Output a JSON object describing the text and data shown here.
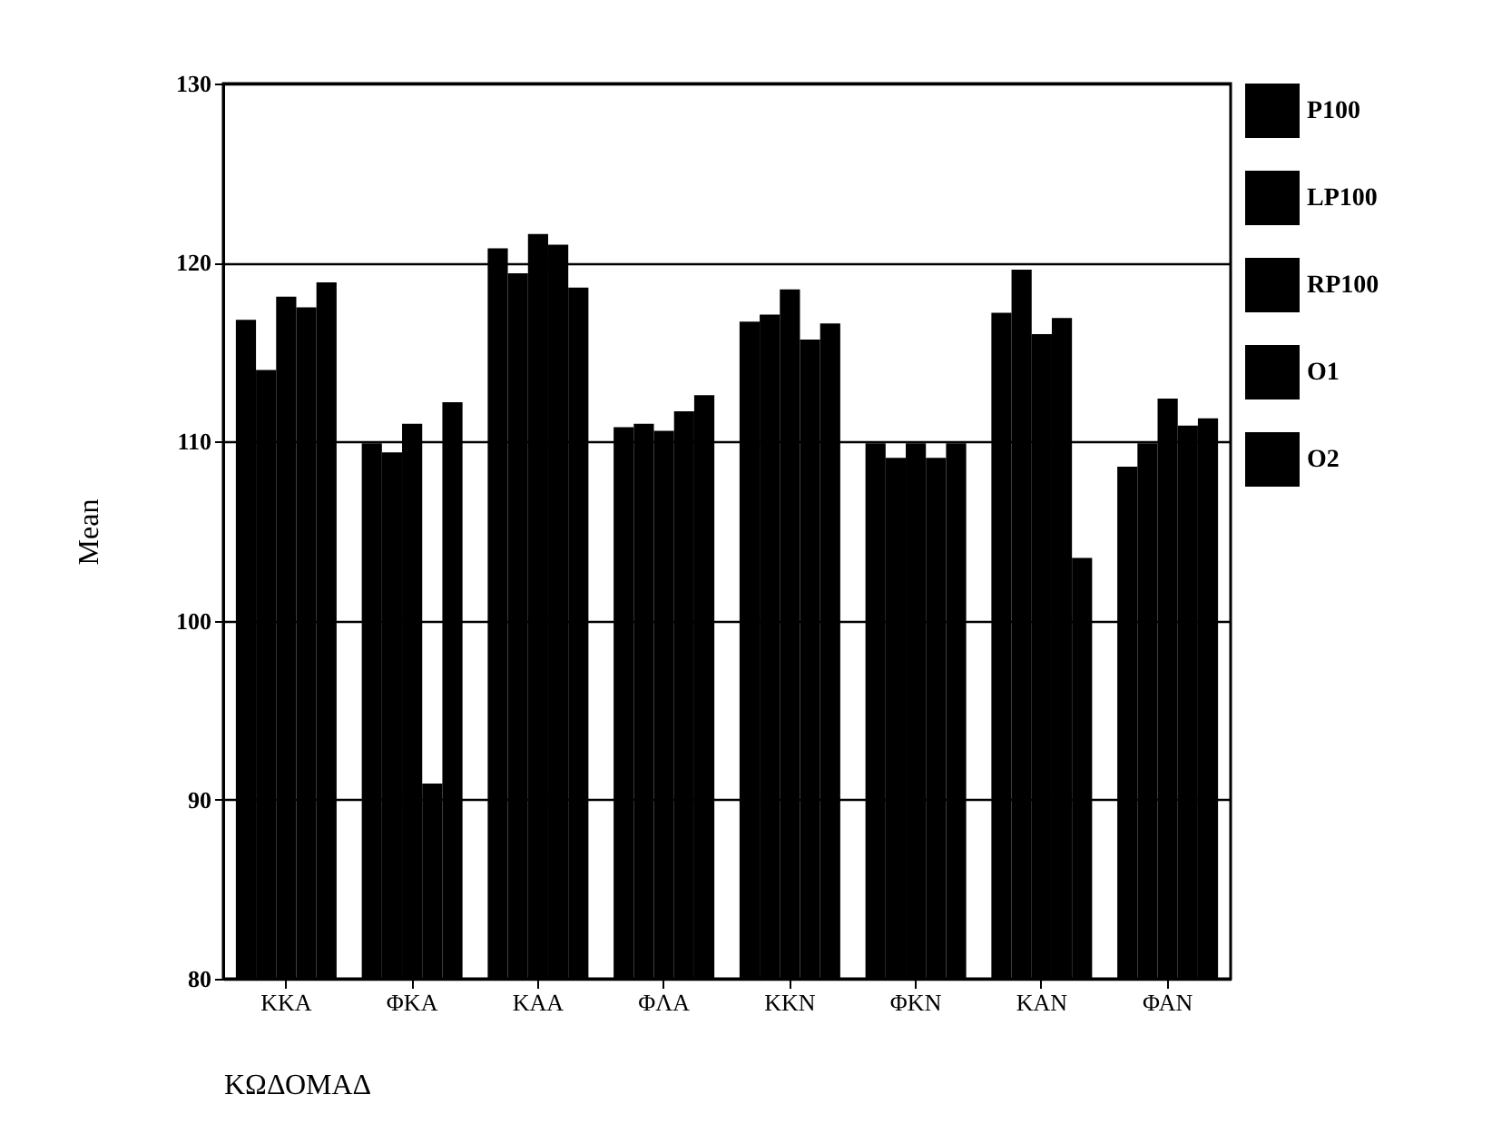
{
  "chart_data": {
    "type": "bar",
    "xlabel": "ΚΩΔΟΜΑΔ",
    "ylabel": "Mean",
    "categories": [
      "ΚΚΑ",
      "ΦΚΑ",
      "ΚΑΑ",
      "ΦΛΑ",
      "ΚΚΝ",
      "ΦΚΝ",
      "ΚΑΝ",
      "ΦΑΝ"
    ],
    "series": [
      {
        "name": "P100",
        "color": "#000000",
        "values": [
          116.8,
          109.9,
          120.8,
          110.8,
          116.7,
          109.9,
          117.2,
          108.6
        ]
      },
      {
        "name": "LP100",
        "color": "#000000",
        "values": [
          114.0,
          109.4,
          119.4,
          111.0,
          117.1,
          109.1,
          119.6,
          109.9
        ]
      },
      {
        "name": "RP100",
        "color": "#000000",
        "values": [
          118.1,
          111.0,
          121.6,
          110.6,
          118.5,
          109.9,
          116.0,
          112.4
        ]
      },
      {
        "name": "O1",
        "color": "#000000",
        "values": [
          117.5,
          90.9,
          121.0,
          111.7,
          115.7,
          109.1,
          116.9,
          110.9
        ]
      },
      {
        "name": "O2",
        "color": "#000000",
        "values": [
          118.9,
          112.2,
          118.6,
          112.6,
          116.6,
          109.9,
          103.5,
          111.3
        ]
      }
    ],
    "ylim": [
      80,
      130
    ],
    "yticks": [
      80,
      90,
      100,
      110,
      120,
      130
    ],
    "grid": "y",
    "legend": "right"
  }
}
